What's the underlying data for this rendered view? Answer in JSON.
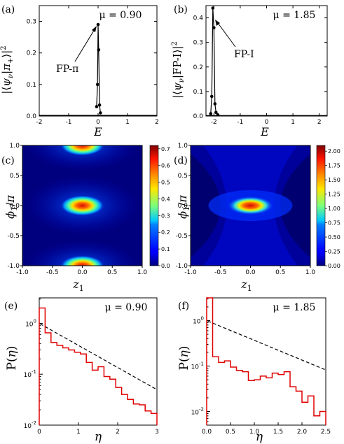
{
  "chart_data": [
    {
      "panel": "(a)",
      "type": "line",
      "annotation_mu": "μ = 0.90",
      "xlabel": "E",
      "ylabel": "|⟨ψν|π+⟩|²",
      "xlim": [
        -2,
        2
      ],
      "ylim": [
        0,
        0.35
      ],
      "xticks": [
        "-2",
        "-1",
        "0",
        "1",
        "2"
      ],
      "yticks": [
        "0.0",
        "0.1",
        "0.2",
        "0.3"
      ],
      "arrow_label": "FP-π",
      "series": [
        {
          "x": [
            -0.05,
            -0.02,
            0.0,
            0.02,
            0.05,
            0.08
          ],
          "y": [
            0.03,
            0.1,
            0.29,
            0.21,
            0.035,
            0.01
          ]
        }
      ]
    },
    {
      "panel": "(b)",
      "type": "line",
      "annotation_mu": "μ = 1.85",
      "xlabel": "E",
      "ylabel": "|⟨ψν|FP-I⟩|²",
      "xlim": [
        -2.3,
        2.3
      ],
      "ylim": [
        0,
        0.45
      ],
      "xticks": [
        "-2",
        "-1",
        "0",
        "1",
        "2"
      ],
      "yticks": [
        "0.0",
        "0.1",
        "0.2",
        "0.3",
        "0.4"
      ],
      "arrow_label": "FP-I",
      "series": [
        {
          "x": [
            -2.12,
            -2.08,
            -2.04,
            -2.0,
            -1.96,
            -1.92,
            -1.85
          ],
          "y": [
            0.01,
            0.08,
            0.44,
            0.36,
            0.05,
            0.015,
            0.005
          ]
        }
      ]
    },
    {
      "panel": "(c)",
      "type": "heatmap",
      "xlabel": "z1",
      "ylabel": "φ1/π",
      "xlim": [
        -1,
        1
      ],
      "ylim": [
        -1,
        1
      ],
      "xticks": [
        "-1.0",
        "-0.5",
        "0.0",
        "0.5",
        "1.0"
      ],
      "yticks": [
        "1.0",
        "0.5",
        "0.0",
        "-0.5",
        "-1.0"
      ],
      "colorbar_ticks": [
        "0.7",
        "0.6",
        "0.5",
        "0.4",
        "0.3",
        "0.2",
        "0.1",
        "0.0"
      ],
      "colorbar_range": [
        0,
        0.72
      ],
      "peaks": [
        {
          "z": 0,
          "phi": 0,
          "value": 0.72
        },
        {
          "z": 0,
          "phi": 1,
          "value": 0.72
        },
        {
          "z": 0,
          "phi": -1,
          "value": 0.72
        }
      ]
    },
    {
      "panel": "(d)",
      "type": "heatmap",
      "xlabel": "z1",
      "ylabel": "φ1/π",
      "xlim": [
        -1,
        1
      ],
      "ylim": [
        -1,
        1
      ],
      "xticks": [
        "-1.0",
        "-0.5",
        "0.0",
        "0.5",
        "1.0"
      ],
      "yticks": [
        "1.0",
        "0.5",
        "0.0",
        "-0.5",
        "-1.0"
      ],
      "colorbar_ticks": [
        "2.00",
        "1.75",
        "1.50",
        "1.25",
        "1.00",
        "0.75",
        "0.50",
        "0.25",
        "0.00"
      ],
      "colorbar_range": [
        0,
        2.1
      ],
      "peaks": [
        {
          "z": 0,
          "phi": 0,
          "value": 2.1
        }
      ]
    },
    {
      "panel": "(e)",
      "type": "line",
      "annotation_mu": "μ = 0.90",
      "xlabel": "η",
      "ylabel": "P(η)",
      "xlim": [
        0,
        3
      ],
      "ylim_log10": [
        -2,
        0.5
      ],
      "xticks": [
        "0",
        "1",
        "2",
        "3"
      ],
      "step_edges": [
        0,
        0.15,
        0.3,
        0.45,
        0.6,
        0.75,
        0.9,
        1.05,
        1.2,
        1.35,
        1.5,
        1.65,
        1.8,
        1.95,
        2.1,
        2.25,
        2.4,
        2.55,
        2.7,
        2.85,
        3.0
      ],
      "step_values": [
        2.0,
        0.65,
        0.42,
        0.37,
        0.33,
        0.3,
        0.27,
        0.25,
        0.17,
        0.12,
        0.14,
        0.09,
        0.08,
        0.055,
        0.04,
        0.032,
        0.026,
        0.025,
        0.019,
        0.017
      ],
      "curve": "exp(-η)"
    },
    {
      "panel": "(f)",
      "type": "line",
      "annotation_mu": "μ = 1.85",
      "xlabel": "η",
      "ylabel": "P(η)",
      "xlim": [
        0,
        2.5
      ],
      "ylim_log10": [
        -2.3,
        0.5
      ],
      "xticks": [
        "0.0",
        "0.5",
        "1.0",
        "1.5",
        "2.0",
        "2.5"
      ],
      "step_edges": [
        0,
        0.125,
        0.25,
        0.375,
        0.5,
        0.625,
        0.75,
        0.875,
        1.0,
        1.125,
        1.25,
        1.375,
        1.5,
        1.625,
        1.75,
        1.875,
        2.0,
        2.125,
        2.25,
        2.375,
        2.5
      ],
      "step_values": [
        3.5,
        0.16,
        0.12,
        0.13,
        0.095,
        0.08,
        0.075,
        0.048,
        0.05,
        0.06,
        0.055,
        0.07,
        0.065,
        0.075,
        0.035,
        0.028,
        0.016,
        0.022,
        0.008,
        0.01
      ],
      "curve": "exp(-η)"
    }
  ]
}
